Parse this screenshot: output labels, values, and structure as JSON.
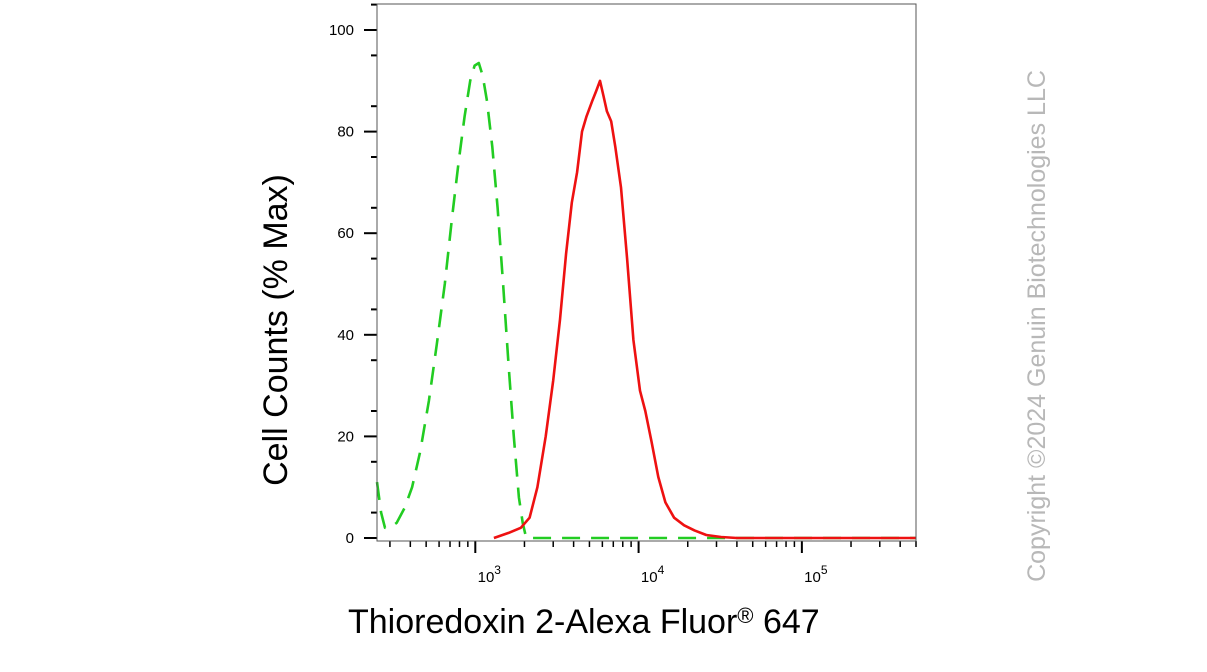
{
  "chart_data": {
    "type": "line",
    "xlabel": "Thioredoxin 2-Alexa Fluor",
    "xlabel_superscript": "®",
    "xlabel_suffix": " 647",
    "ylabel": "Cell Counts (% Max)",
    "x_scale": "log",
    "xlim": [
      250,
      500000
    ],
    "ylim": [
      0,
      105
    ],
    "x_ticks": [
      {
        "value": 1000,
        "base": "10",
        "exp": "3"
      },
      {
        "value": 10000,
        "base": "10",
        "exp": "4"
      },
      {
        "value": 100000,
        "base": "10",
        "exp": "5"
      }
    ],
    "y_ticks": [
      0,
      20,
      40,
      60,
      80,
      100
    ],
    "grid": false,
    "legend": "none",
    "series": [
      {
        "color": "#22cc22",
        "line_style": "dashed",
        "points": [
          [
            250,
            11
          ],
          [
            265,
            5
          ],
          [
            280,
            2
          ],
          [
            300,
            2
          ],
          [
            330,
            3
          ],
          [
            370,
            6
          ],
          [
            410,
            10
          ],
          [
            460,
            17
          ],
          [
            520,
            27
          ],
          [
            580,
            38
          ],
          [
            650,
            50
          ],
          [
            720,
            63
          ],
          [
            790,
            74
          ],
          [
            860,
            83
          ],
          [
            930,
            90
          ],
          [
            990,
            93
          ],
          [
            1050,
            93.5
          ],
          [
            1110,
            91
          ],
          [
            1180,
            86
          ],
          [
            1270,
            77
          ],
          [
            1370,
            65
          ],
          [
            1480,
            50
          ],
          [
            1600,
            34
          ],
          [
            1720,
            20
          ],
          [
            1850,
            8
          ],
          [
            1950,
            3
          ],
          [
            2050,
            0
          ],
          [
            30000,
            0
          ],
          [
            500000,
            0
          ]
        ]
      },
      {
        "color": "#ee1111",
        "line_style": "solid",
        "points": [
          [
            1300,
            0
          ],
          [
            1600,
            1
          ],
          [
            1900,
            2
          ],
          [
            2150,
            4
          ],
          [
            2400,
            10
          ],
          [
            2700,
            20
          ],
          [
            3000,
            31
          ],
          [
            3300,
            43
          ],
          [
            3600,
            56
          ],
          [
            3900,
            66
          ],
          [
            4200,
            72
          ],
          [
            4500,
            80
          ],
          [
            4800,
            83
          ],
          [
            5200,
            86
          ],
          [
            5500,
            88
          ],
          [
            5800,
            90
          ],
          [
            6100,
            87
          ],
          [
            6400,
            84
          ],
          [
            6800,
            82
          ],
          [
            7200,
            77
          ],
          [
            7800,
            69
          ],
          [
            8500,
            55
          ],
          [
            9300,
            39
          ],
          [
            10200,
            29
          ],
          [
            11000,
            25
          ],
          [
            12000,
            19
          ],
          [
            13200,
            12
          ],
          [
            14600,
            7
          ],
          [
            16500,
            4
          ],
          [
            19000,
            2.5
          ],
          [
            22000,
            1.5
          ],
          [
            26000,
            0.6
          ],
          [
            32000,
            0.2
          ],
          [
            40000,
            0
          ],
          [
            500000,
            0
          ]
        ]
      }
    ]
  },
  "watermark": "Copyright ©2024 Genuin Biotechnologies LLC"
}
